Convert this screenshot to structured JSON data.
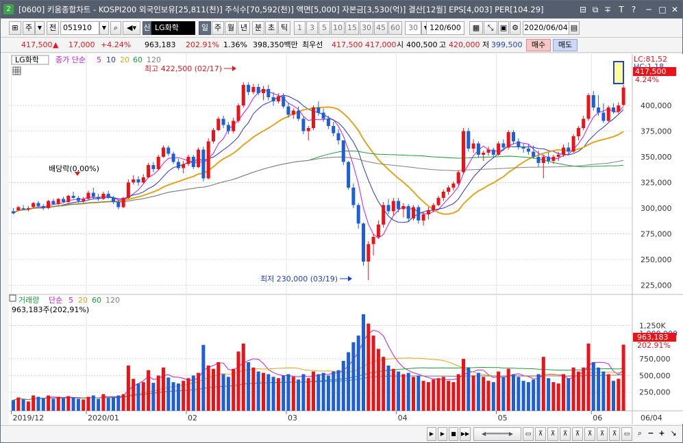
{
  "title": {
    "app_badge": "2",
    "text": "[0600] 키움종합차트 - KOSPI200 외국인보유[25,811(천)] 주식수[70,592(천)] 액면[5,000] 자본금[3,530(억)] 결산[12월] EPS[4,003] PER[104.29]",
    "window_buttons": [
      "⊟",
      "⧉",
      "∓",
      "T",
      "?",
      "─",
      "□",
      "✕"
    ]
  },
  "toolbar": {
    "period_btn": "주",
    "all_btn": "전",
    "code": "051910",
    "badge": "신",
    "stock_name": "LG화학",
    "timeframes": [
      "일",
      "주",
      "월",
      "년",
      "분",
      "초",
      "틱"
    ],
    "active_timeframe": "일",
    "intervals": [
      "1",
      "3",
      "5",
      "10",
      "15",
      "30",
      "45",
      "60"
    ],
    "interval_value": "30",
    "count": "120/600",
    "date": "2020/06/04"
  },
  "quote": {
    "price": "417,500",
    "change_arrow": "▲",
    "change": "17,000",
    "change_pct": "+4.24%",
    "volume": "963,183",
    "vol_ratio": "202.91%",
    "turnover": "1.36%",
    "amount": "398,350백만",
    "best_label": "최우선",
    "best_ask": "417,500",
    "best_bid": "417,000",
    "open_label": "시",
    "open": "400,500",
    "high_label": "고",
    "high": "420,000",
    "low_label": "저",
    "low": "399,500",
    "buy": "매수",
    "sell": "매도"
  },
  "price_panel": {
    "stock_tag": "LG화학",
    "ma_label": "종가 단순",
    "ma_periods": [
      "5",
      "10",
      "20",
      "60",
      "120"
    ],
    "ma_colors": [
      "#c71ad6",
      "#2433c9",
      "#e1a41a",
      "#199c3a",
      "#808080"
    ],
    "high_note": "최고 422,500 (02/17)",
    "low_note": "최저 230,000 (03/19)",
    "dividend_note": "배당락(0,00%)",
    "lc_label": "LC:81,52",
    "hc_label": "HC:1,18",
    "current_price_tag": "417,500",
    "current_pct_tag": "4.24%",
    "y_ticks": [
      "400,000",
      "375,000",
      "350,000",
      "325,000",
      "300,000",
      "275,000",
      "250,000",
      "225,000"
    ]
  },
  "volume_panel": {
    "label": "거래량",
    "ma_label": "단순",
    "ma_periods": [
      "5",
      "20",
      "60",
      "120"
    ],
    "summary": "963,183주(202,91%)",
    "current_tag": "963,183",
    "current_pct": "202.91%",
    "high_tag": "1,000,000",
    "y_ticks": [
      "1,250K",
      "750,000",
      "500,000",
      "250,000"
    ]
  },
  "x_axis": {
    "labels": [
      "2019/12",
      "2020/01",
      "02",
      "03",
      "04",
      "05",
      "06",
      "06/04"
    ]
  },
  "chart_data": {
    "type": "candlestick",
    "ylim": [
      218000,
      438000
    ],
    "vol_ylim": [
      0,
      1420000
    ],
    "colors": {
      "up": "#e8141a",
      "down": "#1f5fd6"
    },
    "candles": [
      {
        "o": 297000,
        "h": 300000,
        "l": 294000,
        "c": 295000,
        "v": 130000
      },
      {
        "o": 298000,
        "h": 302000,
        "l": 297000,
        "c": 301000,
        "v": 170000
      },
      {
        "o": 300000,
        "h": 303000,
        "l": 298000,
        "c": 299000,
        "v": 140000
      },
      {
        "o": 299000,
        "h": 302000,
        "l": 297000,
        "c": 300000,
        "v": 110000
      },
      {
        "o": 301000,
        "h": 306000,
        "l": 300000,
        "c": 305000,
        "v": 200000
      },
      {
        "o": 305000,
        "h": 307000,
        "l": 301000,
        "c": 302000,
        "v": 180000
      },
      {
        "o": 302000,
        "h": 304000,
        "l": 298000,
        "c": 300000,
        "v": 160000
      },
      {
        "o": 300000,
        "h": 308000,
        "l": 299000,
        "c": 307000,
        "v": 200000
      },
      {
        "o": 307000,
        "h": 309000,
        "l": 303000,
        "c": 304000,
        "v": 150000
      },
      {
        "o": 304000,
        "h": 310000,
        "l": 303000,
        "c": 309000,
        "v": 180000
      },
      {
        "o": 309000,
        "h": 311000,
        "l": 305000,
        "c": 306000,
        "v": 160000
      },
      {
        "o": 306000,
        "h": 313000,
        "l": 305000,
        "c": 312000,
        "v": 190000
      },
      {
        "o": 312000,
        "h": 316000,
        "l": 309000,
        "c": 310000,
        "v": 170000
      },
      {
        "o": 310000,
        "h": 312000,
        "l": 305000,
        "c": 307000,
        "v": 150000
      },
      {
        "o": 307000,
        "h": 311000,
        "l": 305000,
        "c": 309000,
        "v": 140000
      },
      {
        "o": 309000,
        "h": 317000,
        "l": 308000,
        "c": 315000,
        "v": 180000
      },
      {
        "o": 315000,
        "h": 320000,
        "l": 309000,
        "c": 311000,
        "v": 200000
      },
      {
        "o": 311000,
        "h": 314000,
        "l": 307000,
        "c": 309000,
        "v": 150000
      },
      {
        "o": 309000,
        "h": 316000,
        "l": 308000,
        "c": 314000,
        "v": 220000
      },
      {
        "o": 314000,
        "h": 317000,
        "l": 309000,
        "c": 310000,
        "v": 160000
      },
      {
        "o": 310000,
        "h": 312000,
        "l": 304000,
        "c": 306000,
        "v": 170000
      },
      {
        "o": 306000,
        "h": 308000,
        "l": 299000,
        "c": 301000,
        "v": 200000
      },
      {
        "o": 301000,
        "h": 311000,
        "l": 300000,
        "c": 310000,
        "v": 220000
      },
      {
        "o": 310000,
        "h": 328000,
        "l": 309000,
        "c": 325000,
        "v": 650000
      },
      {
        "o": 325000,
        "h": 332000,
        "l": 323000,
        "c": 328000,
        "v": 450000
      },
      {
        "o": 328000,
        "h": 331000,
        "l": 322000,
        "c": 325000,
        "v": 380000
      },
      {
        "o": 325000,
        "h": 333000,
        "l": 324000,
        "c": 330000,
        "v": 400000
      },
      {
        "o": 330000,
        "h": 344000,
        "l": 329000,
        "c": 342000,
        "v": 580000
      },
      {
        "o": 342000,
        "h": 345000,
        "l": 335000,
        "c": 338000,
        "v": 390000
      },
      {
        "o": 338000,
        "h": 352000,
        "l": 337000,
        "c": 350000,
        "v": 500000
      },
      {
        "o": 350000,
        "h": 361000,
        "l": 349000,
        "c": 359000,
        "v": 620000
      },
      {
        "o": 359000,
        "h": 361000,
        "l": 351000,
        "c": 353000,
        "v": 470000
      },
      {
        "o": 353000,
        "h": 355000,
        "l": 343000,
        "c": 345000,
        "v": 400000
      },
      {
        "o": 345000,
        "h": 348000,
        "l": 337000,
        "c": 339000,
        "v": 380000
      },
      {
        "o": 339000,
        "h": 346000,
        "l": 334000,
        "c": 343000,
        "v": 420000
      },
      {
        "o": 343000,
        "h": 352000,
        "l": 341000,
        "c": 350000,
        "v": 460000
      },
      {
        "o": 350000,
        "h": 352000,
        "l": 338000,
        "c": 340000,
        "v": 500000
      },
      {
        "o": 340000,
        "h": 359000,
        "l": 339000,
        "c": 357000,
        "v": 540000
      },
      {
        "o": 357000,
        "h": 360000,
        "l": 326000,
        "c": 329000,
        "v": 960000
      },
      {
        "o": 329000,
        "h": 368000,
        "l": 328000,
        "c": 365000,
        "v": 650000
      },
      {
        "o": 365000,
        "h": 378000,
        "l": 363000,
        "c": 376000,
        "v": 600000
      },
      {
        "o": 376000,
        "h": 389000,
        "l": 375000,
        "c": 387000,
        "v": 700000
      },
      {
        "o": 387000,
        "h": 390000,
        "l": 378000,
        "c": 381000,
        "v": 520000
      },
      {
        "o": 381000,
        "h": 384000,
        "l": 372000,
        "c": 375000,
        "v": 480000
      },
      {
        "o": 375000,
        "h": 388000,
        "l": 373000,
        "c": 385000,
        "v": 600000
      },
      {
        "o": 385000,
        "h": 402000,
        "l": 383000,
        "c": 400000,
        "v": 860000
      },
      {
        "o": 400000,
        "h": 422500,
        "l": 398000,
        "c": 420000,
        "v": 980000
      },
      {
        "o": 420000,
        "h": 422500,
        "l": 410000,
        "c": 413000,
        "v": 700000
      },
      {
        "o": 413000,
        "h": 421000,
        "l": 411000,
        "c": 418000,
        "v": 620000
      },
      {
        "o": 418000,
        "h": 421000,
        "l": 410000,
        "c": 412000,
        "v": 560000
      },
      {
        "o": 412000,
        "h": 419000,
        "l": 405000,
        "c": 416000,
        "v": 540000
      },
      {
        "o": 416000,
        "h": 420000,
        "l": 405000,
        "c": 408000,
        "v": 520000
      },
      {
        "o": 408000,
        "h": 413000,
        "l": 400000,
        "c": 404000,
        "v": 480000
      },
      {
        "o": 404000,
        "h": 412000,
        "l": 402000,
        "c": 409000,
        "v": 460000
      },
      {
        "o": 409000,
        "h": 412000,
        "l": 397000,
        "c": 399000,
        "v": 500000
      },
      {
        "o": 399000,
        "h": 403000,
        "l": 388000,
        "c": 391000,
        "v": 520000
      },
      {
        "o": 391000,
        "h": 397000,
        "l": 387000,
        "c": 395000,
        "v": 480000
      },
      {
        "o": 395000,
        "h": 399000,
        "l": 385000,
        "c": 387000,
        "v": 440000
      },
      {
        "o": 387000,
        "h": 389000,
        "l": 372000,
        "c": 375000,
        "v": 520000
      },
      {
        "o": 375000,
        "h": 380000,
        "l": 366000,
        "c": 378000,
        "v": 460000
      },
      {
        "o": 378000,
        "h": 400000,
        "l": 376000,
        "c": 398000,
        "v": 560000
      },
      {
        "o": 398000,
        "h": 404000,
        "l": 390000,
        "c": 393000,
        "v": 520000
      },
      {
        "o": 393000,
        "h": 397000,
        "l": 384000,
        "c": 387000,
        "v": 540000
      },
      {
        "o": 387000,
        "h": 390000,
        "l": 377000,
        "c": 380000,
        "v": 500000
      },
      {
        "o": 380000,
        "h": 384000,
        "l": 370000,
        "c": 373000,
        "v": 560000
      },
      {
        "o": 373000,
        "h": 377000,
        "l": 362000,
        "c": 366000,
        "v": 580000
      },
      {
        "o": 366000,
        "h": 366000,
        "l": 342000,
        "c": 345000,
        "v": 720000
      },
      {
        "o": 345000,
        "h": 346000,
        "l": 318000,
        "c": 320000,
        "v": 850000
      },
      {
        "o": 320000,
        "h": 324000,
        "l": 300000,
        "c": 303000,
        "v": 1000000
      },
      {
        "o": 303000,
        "h": 305000,
        "l": 280000,
        "c": 285000,
        "v": 1100000
      },
      {
        "o": 285000,
        "h": 286000,
        "l": 244000,
        "c": 248000,
        "v": 1420000
      },
      {
        "o": 248000,
        "h": 268000,
        "l": 230000,
        "c": 265000,
        "v": 1280000
      },
      {
        "o": 265000,
        "h": 275000,
        "l": 254000,
        "c": 272000,
        "v": 1100000
      },
      {
        "o": 272000,
        "h": 288000,
        "l": 270000,
        "c": 284000,
        "v": 900000
      },
      {
        "o": 284000,
        "h": 306000,
        "l": 281000,
        "c": 303000,
        "v": 780000
      },
      {
        "o": 303000,
        "h": 309000,
        "l": 294000,
        "c": 297000,
        "v": 650000
      },
      {
        "o": 297000,
        "h": 310000,
        "l": 293000,
        "c": 307000,
        "v": 600000
      },
      {
        "o": 307000,
        "h": 310000,
        "l": 296000,
        "c": 299000,
        "v": 560000
      },
      {
        "o": 299000,
        "h": 305000,
        "l": 291000,
        "c": 302000,
        "v": 520000
      },
      {
        "o": 302000,
        "h": 304000,
        "l": 287000,
        "c": 290000,
        "v": 540000
      },
      {
        "o": 290000,
        "h": 303000,
        "l": 288000,
        "c": 301000,
        "v": 480000
      },
      {
        "o": 301000,
        "h": 303000,
        "l": 285000,
        "c": 288000,
        "v": 500000
      },
      {
        "o": 288000,
        "h": 296000,
        "l": 283000,
        "c": 294000,
        "v": 420000
      },
      {
        "o": 294000,
        "h": 301000,
        "l": 289000,
        "c": 298000,
        "v": 400000
      },
      {
        "o": 298000,
        "h": 305000,
        "l": 296000,
        "c": 303000,
        "v": 440000
      },
      {
        "o": 303000,
        "h": 312000,
        "l": 302000,
        "c": 310000,
        "v": 460000
      },
      {
        "o": 310000,
        "h": 318000,
        "l": 307000,
        "c": 316000,
        "v": 480000
      },
      {
        "o": 316000,
        "h": 322000,
        "l": 313000,
        "c": 320000,
        "v": 420000
      },
      {
        "o": 320000,
        "h": 326000,
        "l": 317000,
        "c": 324000,
        "v": 400000
      },
      {
        "o": 324000,
        "h": 337000,
        "l": 322000,
        "c": 335000,
        "v": 520000
      },
      {
        "o": 335000,
        "h": 378000,
        "l": 333000,
        "c": 375000,
        "v": 750000
      },
      {
        "o": 375000,
        "h": 378000,
        "l": 355000,
        "c": 358000,
        "v": 620000
      },
      {
        "o": 358000,
        "h": 367000,
        "l": 354000,
        "c": 363000,
        "v": 500000
      },
      {
        "o": 363000,
        "h": 365000,
        "l": 349000,
        "c": 352000,
        "v": 540000
      },
      {
        "o": 352000,
        "h": 356000,
        "l": 346000,
        "c": 354000,
        "v": 480000
      },
      {
        "o": 354000,
        "h": 360000,
        "l": 351000,
        "c": 357000,
        "v": 420000
      },
      {
        "o": 357000,
        "h": 359000,
        "l": 350000,
        "c": 352000,
        "v": 400000
      },
      {
        "o": 352000,
        "h": 365000,
        "l": 351000,
        "c": 363000,
        "v": 560000
      },
      {
        "o": 363000,
        "h": 367000,
        "l": 356000,
        "c": 359000,
        "v": 480000
      },
      {
        "o": 359000,
        "h": 376000,
        "l": 357000,
        "c": 374000,
        "v": 600000
      },
      {
        "o": 374000,
        "h": 376000,
        "l": 362000,
        "c": 365000,
        "v": 520000
      },
      {
        "o": 365000,
        "h": 368000,
        "l": 357000,
        "c": 360000,
        "v": 480000
      },
      {
        "o": 360000,
        "h": 363000,
        "l": 354000,
        "c": 358000,
        "v": 420000
      },
      {
        "o": 358000,
        "h": 362000,
        "l": 352000,
        "c": 355000,
        "v": 400000
      },
      {
        "o": 355000,
        "h": 361000,
        "l": 348000,
        "c": 350000,
        "v": 440000
      },
      {
        "o": 350000,
        "h": 356000,
        "l": 340000,
        "c": 344000,
        "v": 520000
      },
      {
        "o": 344000,
        "h": 352000,
        "l": 329000,
        "c": 350000,
        "v": 780000
      },
      {
        "o": 350000,
        "h": 354000,
        "l": 343000,
        "c": 346000,
        "v": 460000
      },
      {
        "o": 346000,
        "h": 352000,
        "l": 343000,
        "c": 350000,
        "v": 400000
      },
      {
        "o": 350000,
        "h": 355000,
        "l": 346000,
        "c": 352000,
        "v": 380000
      },
      {
        "o": 352000,
        "h": 362000,
        "l": 350000,
        "c": 359000,
        "v": 520000
      },
      {
        "o": 359000,
        "h": 364000,
        "l": 352000,
        "c": 355000,
        "v": 460000
      },
      {
        "o": 355000,
        "h": 372000,
        "l": 354000,
        "c": 370000,
        "v": 620000
      },
      {
        "o": 370000,
        "h": 380000,
        "l": 366000,
        "c": 378000,
        "v": 560000
      },
      {
        "o": 378000,
        "h": 390000,
        "l": 376000,
        "c": 387000,
        "v": 620000
      },
      {
        "o": 387000,
        "h": 412000,
        "l": 385000,
        "c": 410000,
        "v": 980000
      },
      {
        "o": 410000,
        "h": 414000,
        "l": 395000,
        "c": 398000,
        "v": 700000
      },
      {
        "o": 398000,
        "h": 410000,
        "l": 390000,
        "c": 393000,
        "v": 620000
      },
      {
        "o": 393000,
        "h": 402000,
        "l": 383000,
        "c": 385000,
        "v": 560000
      },
      {
        "o": 385000,
        "h": 400000,
        "l": 384000,
        "c": 398000,
        "v": 520000
      },
      {
        "o": 398000,
        "h": 402000,
        "l": 392000,
        "c": 394000,
        "v": 420000
      },
      {
        "o": 394000,
        "h": 403000,
        "l": 392000,
        "c": 400000,
        "v": 450000
      },
      {
        "o": 400500,
        "h": 420000,
        "l": 399500,
        "c": 417500,
        "v": 963183
      }
    ]
  }
}
